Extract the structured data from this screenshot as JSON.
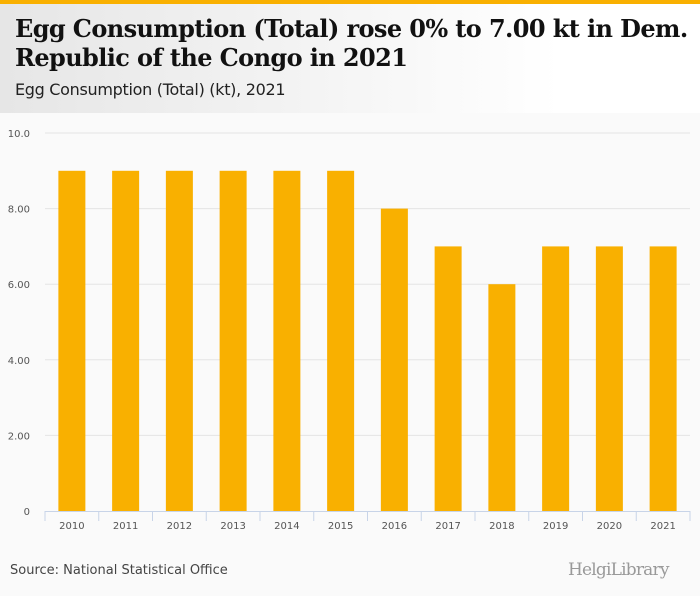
{
  "header": {
    "title": "Egg Consumption (Total) rose 0% to 7.00 kt in Dem. Republic of the Congo in 2021",
    "subtitle": "Egg Consumption (Total) (kt), 2021"
  },
  "footer": {
    "source": "Source: National Statistical Office",
    "logo": "HelgiLibrary"
  },
  "colors": {
    "bar": "#f9b000",
    "accent": "#f9b000"
  },
  "chart_data": {
    "type": "bar",
    "categories": [
      "2010",
      "2011",
      "2012",
      "2013",
      "2014",
      "2015",
      "2016",
      "2017",
      "2018",
      "2019",
      "2020",
      "2021"
    ],
    "values": [
      9,
      9,
      9,
      9,
      9,
      9,
      8,
      7,
      6,
      7,
      7,
      7
    ],
    "yticks": [
      0,
      2,
      4,
      6,
      8,
      10
    ],
    "ytick_labels": [
      "0",
      "2.00",
      "4.00",
      "6.00",
      "8.00",
      "10.0"
    ],
    "ylim": [
      0,
      10
    ],
    "xlabel": "",
    "ylabel": "",
    "grid": true
  }
}
